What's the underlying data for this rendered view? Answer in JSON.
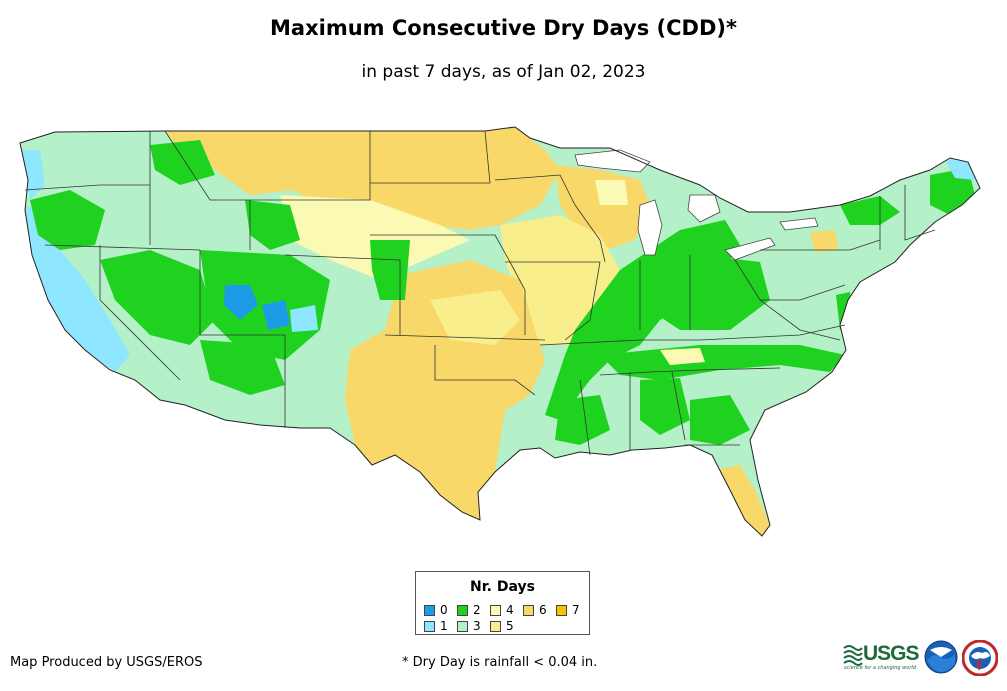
{
  "title": "Maximum Consecutive Dry Days (CDD)*",
  "subtitle": "in past 7 days, as of Jan 02, 2023",
  "legend": {
    "title": "Nr. Days",
    "items": [
      {
        "label": "0",
        "color": "#1e9be6"
      },
      {
        "label": "1",
        "color": "#8ee6ff"
      },
      {
        "label": "2",
        "color": "#1fd21f"
      },
      {
        "label": "3",
        "color": "#b4f0c8"
      },
      {
        "label": "4",
        "color": "#fafab4"
      },
      {
        "label": "5",
        "color": "#f8ee8c"
      },
      {
        "label": "6",
        "color": "#f9d86a"
      },
      {
        "label": "7",
        "color": "#f5c400"
      }
    ]
  },
  "credit": "Map Produced by USGS/EROS",
  "footnote": "* Dry Day is rainfall < 0.04 in.",
  "logos": {
    "usgs_word": "USGS",
    "usgs_tagline": "science for a changing world",
    "noaa": "noaa"
  }
}
